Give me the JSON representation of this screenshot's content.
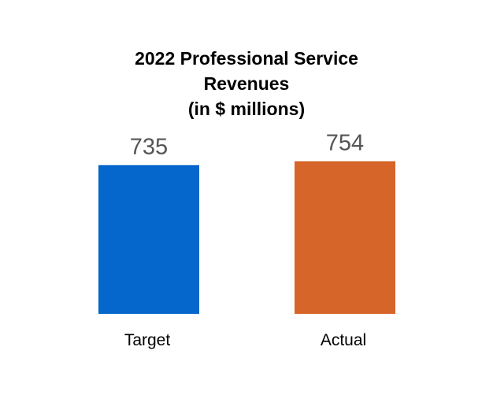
{
  "chart_data": {
    "type": "bar",
    "title_lines": [
      "2022 Professional Service",
      "Revenues",
      "(in $ millions)"
    ],
    "categories": [
      "Target",
      "Actual"
    ],
    "values": [
      735,
      754
    ],
    "colors": [
      "#0566cc",
      "#d6652a"
    ],
    "data_labels": [
      "735",
      "754"
    ],
    "xlabel": "",
    "ylabel": "",
    "grid": false,
    "legend": "none"
  }
}
